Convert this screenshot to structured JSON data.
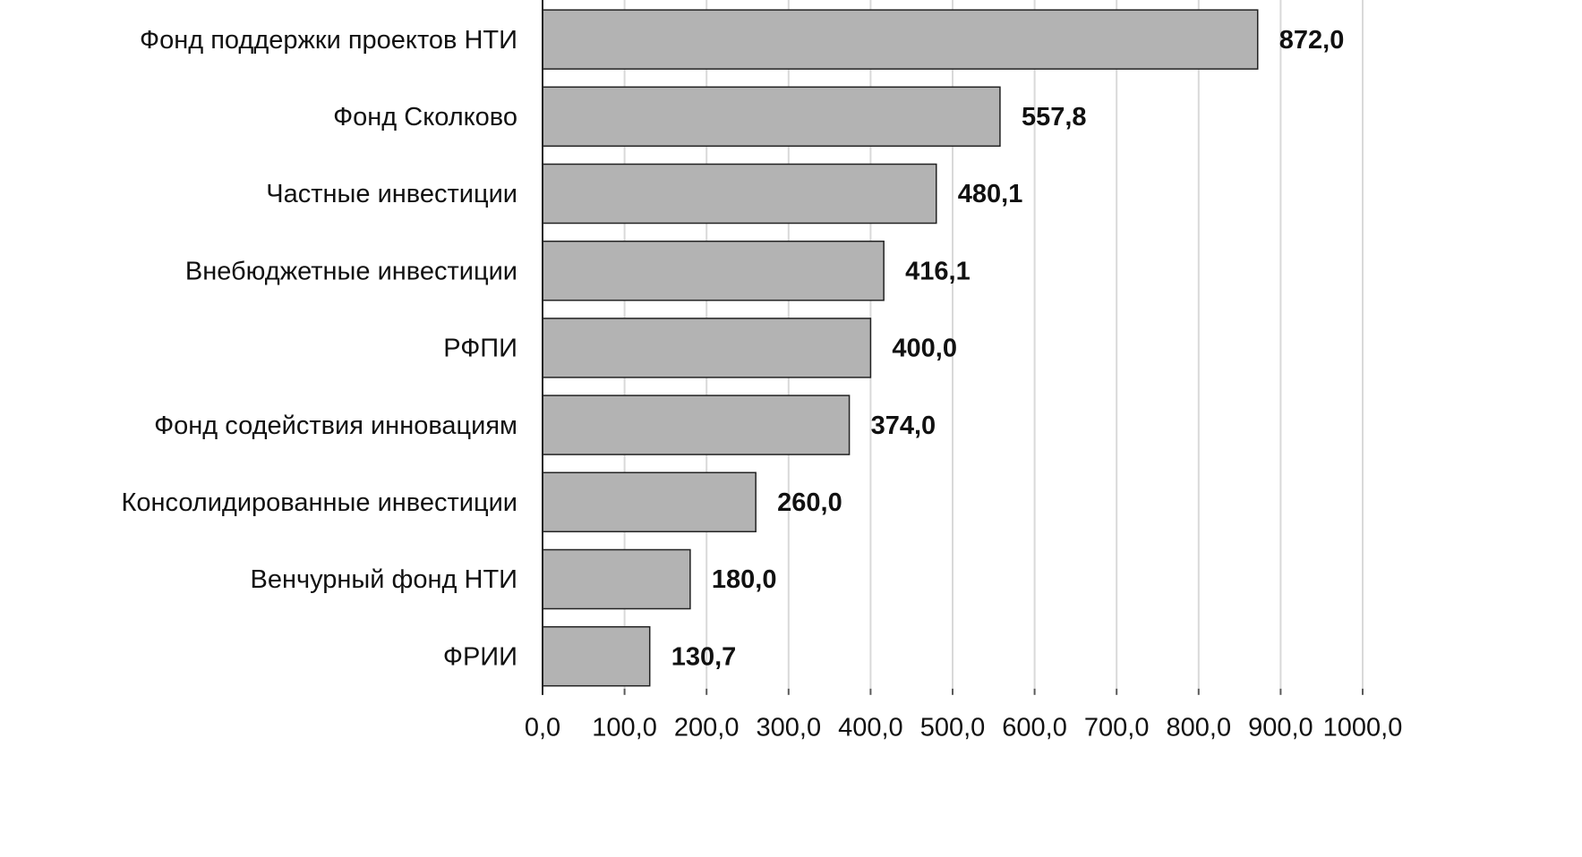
{
  "chart_data": {
    "type": "bar",
    "orientation": "horizontal",
    "categories": [
      "Фонд поддержки проектов НТИ",
      "Фонд Сколково",
      "Частные инвестиции",
      "Внебюджетные инвестиции",
      "РФПИ",
      "Фонд содействия инновациям",
      "Консолидированные инвестиции",
      "Венчурный фонд НТИ",
      "ФРИИ"
    ],
    "values": [
      872.0,
      557.8,
      480.1,
      416.1,
      400.0,
      374.0,
      260.0,
      180.0,
      130.7
    ],
    "value_labels": [
      "872,0",
      "557,8",
      "480,1",
      "416,1",
      "400,0",
      "374,0",
      "260,0",
      "180,0",
      "130,7"
    ],
    "color": "#b3b3b3",
    "xlim": [
      0,
      1000
    ],
    "xticks": [
      {
        "value": 0,
        "label": "0,0"
      },
      {
        "value": 100,
        "label": "100,0"
      },
      {
        "value": 200,
        "label": "200,0"
      },
      {
        "value": 300,
        "label": "300,0"
      },
      {
        "value": 400,
        "label": "400,0"
      },
      {
        "value": 500,
        "label": "500,0"
      },
      {
        "value": 600,
        "label": "600,0"
      },
      {
        "value": 700,
        "label": "700,0"
      },
      {
        "value": 800,
        "label": "800,0"
      },
      {
        "value": 900,
        "label": "900,0"
      },
      {
        "value": 1000,
        "label": "1000,0"
      }
    ],
    "grid": true
  }
}
